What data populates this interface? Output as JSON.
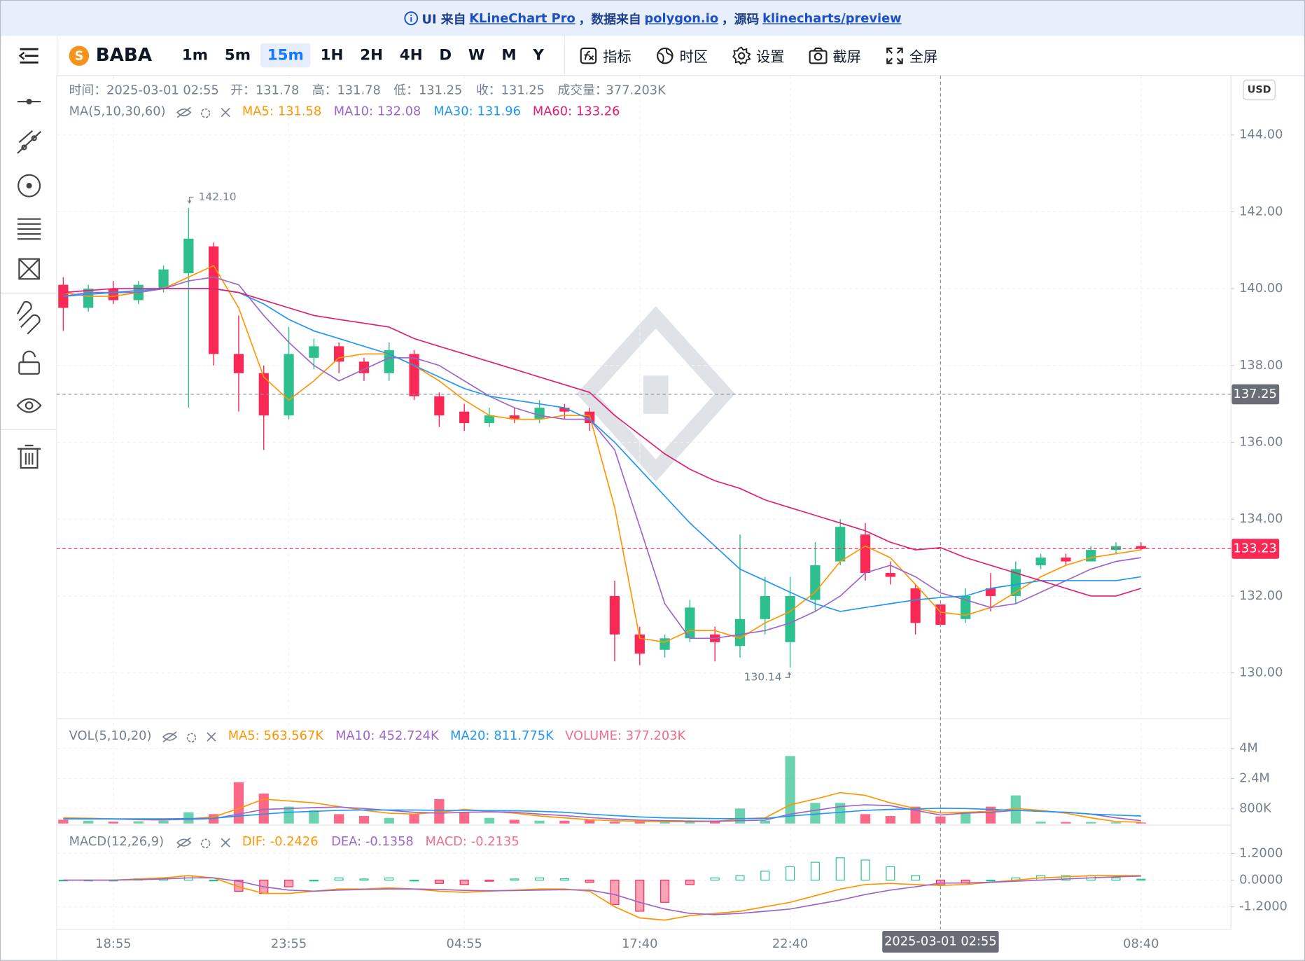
{
  "banner": {
    "prefix": "UI 来自",
    "link1": "KLineChart Pro",
    "mid1": "，数据来自",
    "link2": "polygon.io",
    "mid2": "，源码",
    "link3": "klinecharts/preview"
  },
  "toolbar": {
    "symbol": "BABA",
    "symbol_icon": "S",
    "periods": [
      "1m",
      "5m",
      "15m",
      "1H",
      "2H",
      "4H",
      "D",
      "W",
      "M",
      "Y"
    ],
    "active_period": "15m",
    "buttons": [
      "指标",
      "时区",
      "设置",
      "截屏",
      "全屏"
    ]
  },
  "chart_data": {
    "type": "candlestick",
    "currency": "USD",
    "up_color": "#2dc08e",
    "down_color": "#f92855",
    "categories": [
      null,
      null,
      "18:55",
      null,
      null,
      null,
      null,
      null,
      null,
      "23:55",
      null,
      null,
      null,
      null,
      null,
      null,
      "04:55",
      null,
      null,
      null,
      null,
      null,
      null,
      "17:40",
      null,
      null,
      null,
      null,
      null,
      "22:40",
      null,
      null,
      null,
      null,
      null,
      "2025-03-01 02:55",
      null,
      null,
      null,
      null,
      null,
      null,
      null,
      "08:40"
    ],
    "open": [
      140.1,
      139.5,
      140.0,
      139.7,
      140.0,
      140.4,
      141.1,
      138.3,
      137.8,
      136.7,
      138.2,
      138.5,
      138.1,
      137.8,
      138.3,
      137.2,
      136.8,
      136.5,
      136.7,
      136.6,
      136.9,
      136.8,
      132.0,
      131.0,
      130.6,
      130.9,
      131.0,
      130.7,
      131.4,
      130.8,
      131.9,
      132.9,
      133.6,
      132.6,
      132.2,
      131.78,
      131.4,
      132.2,
      132.0,
      132.8,
      133.0,
      132.9,
      133.2,
      133.3
    ],
    "high": [
      140.3,
      140.1,
      140.2,
      140.2,
      140.6,
      142.1,
      141.2,
      139.3,
      138.0,
      139.0,
      138.7,
      138.6,
      138.2,
      138.6,
      138.4,
      137.3,
      137.0,
      136.9,
      136.9,
      137.1,
      137.0,
      136.9,
      132.4,
      131.2,
      131.0,
      131.9,
      131.2,
      133.6,
      132.5,
      132.5,
      133.4,
      134.0,
      133.9,
      132.9,
      132.3,
      131.78,
      132.2,
      132.6,
      132.9,
      133.1,
      133.1,
      133.3,
      133.4,
      133.4
    ],
    "low": [
      138.9,
      139.4,
      139.6,
      139.6,
      139.9,
      136.9,
      138.0,
      136.8,
      135.8,
      136.6,
      137.9,
      137.8,
      137.6,
      137.6,
      137.1,
      136.4,
      136.3,
      136.4,
      136.5,
      136.5,
      136.6,
      136.3,
      130.3,
      130.2,
      130.4,
      130.8,
      130.3,
      130.4,
      131.0,
      130.14,
      131.6,
      132.8,
      132.4,
      132.3,
      131.0,
      131.25,
      131.3,
      131.6,
      131.8,
      132.7,
      132.8,
      132.9,
      133.1,
      133.2
    ],
    "close": [
      139.5,
      140.0,
      139.7,
      140.1,
      140.5,
      141.3,
      138.3,
      137.8,
      136.7,
      138.3,
      138.5,
      138.1,
      137.8,
      138.4,
      137.2,
      136.7,
      136.5,
      136.7,
      136.6,
      136.9,
      136.8,
      136.5,
      131.0,
      130.5,
      130.9,
      131.7,
      130.8,
      131.4,
      132.0,
      132.0,
      132.8,
      133.8,
      132.6,
      132.5,
      131.3,
      131.25,
      132.0,
      132.0,
      132.7,
      133.0,
      132.9,
      133.2,
      133.3,
      133.23
    ],
    "ylim": [
      128.81,
      145.54
    ],
    "yticks": [
      {
        "value": 130,
        "label": "130.00"
      },
      {
        "value": 132,
        "label": "132.00"
      },
      {
        "value": 134,
        "label": "134.00"
      },
      {
        "value": 136,
        "label": "136.00"
      },
      {
        "value": 138,
        "label": "138.00"
      },
      {
        "value": 140,
        "label": "140.00"
      },
      {
        "value": 142,
        "label": "142.00"
      },
      {
        "value": 144,
        "label": "144.00"
      }
    ],
    "grid": true,
    "tooltip_labels": [
      "时间：",
      "开：",
      "高：",
      "低：",
      "收：",
      "成交量："
    ],
    "indicator": "MA(5,10,30,60)",
    "series": [
      {
        "name": "MA5:",
        "color": "#ff9600",
        "values": [
          139.9,
          139.8,
          139.8,
          139.9,
          140.0,
          140.3,
          140.6,
          139.5,
          137.7,
          137.1,
          137.6,
          138.2,
          138.3,
          138.3,
          138.0,
          137.6,
          137.1,
          136.7,
          136.6,
          136.6,
          136.7,
          136.7,
          134.3,
          130.9,
          130.8,
          131.1,
          131.1,
          130.9,
          131.3,
          131.6,
          132.1,
          132.9,
          133.3,
          133.0,
          132.3,
          131.58,
          131.5,
          131.7,
          132.1,
          132.5,
          132.8,
          133.0,
          133.1,
          133.2
        ]
      },
      {
        "name": "MA10:",
        "color": "#9d65c9",
        "values": [
          139.8,
          139.9,
          139.9,
          139.9,
          140.0,
          140.2,
          140.3,
          140.1,
          139.3,
          138.6,
          138.0,
          137.6,
          137.9,
          138.2,
          138.2,
          138.0,
          137.6,
          137.2,
          136.9,
          136.7,
          136.6,
          136.6,
          135.8,
          133.8,
          131.8,
          130.9,
          130.9,
          131.0,
          131.1,
          131.3,
          131.6,
          132.0,
          132.6,
          132.8,
          132.5,
          132.08,
          131.9,
          131.7,
          131.8,
          132.1,
          132.4,
          132.7,
          132.9,
          133.0
        ]
      },
      {
        "name": "MA30:",
        "color": "#2196f3",
        "values": [
          139.8,
          139.85,
          139.9,
          139.95,
          140.0,
          140.0,
          140.0,
          139.9,
          139.6,
          139.2,
          138.9,
          138.7,
          138.5,
          138.3,
          138.0,
          137.7,
          137.4,
          137.2,
          137.1,
          137.0,
          136.9,
          136.6,
          136.0,
          135.3,
          134.6,
          133.9,
          133.3,
          132.7,
          132.4,
          132.1,
          131.8,
          131.6,
          131.7,
          131.8,
          131.9,
          131.96,
          132.0,
          132.2,
          132.3,
          132.4,
          132.4,
          132.4,
          132.4,
          132.5
        ]
      },
      {
        "name": "MA60:",
        "color": "#e11d74",
        "values": [
          139.9,
          139.95,
          140.0,
          140.0,
          140.0,
          140.0,
          140.0,
          139.9,
          139.7,
          139.5,
          139.3,
          139.2,
          139.1,
          139.0,
          138.7,
          138.5,
          138.3,
          138.1,
          137.9,
          137.7,
          137.5,
          137.3,
          136.7,
          136.2,
          135.7,
          135.3,
          135.0,
          134.8,
          134.5,
          134.3,
          134.1,
          133.9,
          133.7,
          133.4,
          133.2,
          133.26,
          133.0,
          132.8,
          132.6,
          132.4,
          132.2,
          132.0,
          132.0,
          132.2
        ]
      }
    ],
    "annotations": [
      {
        "value": 142.1,
        "label": "142.10"
      },
      {
        "value": 130.14,
        "label": "130.14"
      }
    ],
    "crosshair": {
      "value": 137.25
    },
    "volume": {
      "indicator": "VOL(5,10,20)",
      "values": [
        200000,
        150000,
        100000,
        120000,
        150000,
        600000,
        500000,
        2200000,
        1600000,
        900000,
        700000,
        500000,
        400000,
        300000,
        500000,
        1300000,
        600000,
        300000,
        200000,
        150000,
        150000,
        200000,
        100000,
        100000,
        80000,
        100000,
        150000,
        800000,
        150000,
        3600000,
        1100000,
        1100000,
        500000,
        400000,
        900000,
        377203,
        600000,
        900000,
        1500000,
        100000,
        80000,
        80000,
        60000,
        50000
      ],
      "current": {
        "name": "VOLUME:",
        "label": "377.203K",
        "color": "#ef6f8e"
      },
      "ylim": [
        0,
        5420000
      ],
      "yticks": [
        {
          "value": 800000,
          "label": "800K"
        },
        {
          "value": 2400000,
          "label": "2.4M"
        },
        {
          "value": 4000000,
          "label": "4M"
        }
      ],
      "series": [
        {
          "name": "MA5:",
          "color": "#ff9600",
          "current_label": "563.567K",
          "values": [
            300000,
            280000,
            250000,
            200000,
            180000,
            250000,
            350000,
            800000,
            1300000,
            1200000,
            1100000,
            900000,
            700000,
            550000,
            500000,
            600000,
            750000,
            650000,
            550000,
            400000,
            300000,
            200000,
            150000,
            120000,
            100000,
            100000,
            110000,
            250000,
            300000,
            1000000,
            1300000,
            1650000,
            1500000,
            1100000,
            800000,
            563567,
            600000,
            650000,
            800000,
            700000,
            550000,
            300000,
            100000,
            70000
          ]
        },
        {
          "name": "MA10:",
          "color": "#9d65c9",
          "current_label": "452.724K",
          "values": [
            250000,
            250000,
            240000,
            220000,
            200000,
            220000,
            260000,
            500000,
            750000,
            800000,
            850000,
            880000,
            800000,
            700000,
            600000,
            550000,
            600000,
            620000,
            600000,
            500000,
            420000,
            320000,
            240000,
            180000,
            150000,
            130000,
            120000,
            150000,
            180000,
            500000,
            700000,
            900000,
            1000000,
            950000,
            700000,
            452724,
            550000,
            600000,
            700000,
            650000,
            600000,
            500000,
            300000,
            150000
          ]
        },
        {
          "name": "MA20:",
          "color": "#2196f3",
          "current_label": "811.775K",
          "values": [
            250000,
            250000,
            250000,
            250000,
            250000,
            260000,
            280000,
            400000,
            500000,
            600000,
            650000,
            700000,
            720000,
            720000,
            720000,
            700000,
            700000,
            690000,
            680000,
            650000,
            600000,
            500000,
            420000,
            350000,
            300000,
            280000,
            260000,
            260000,
            270000,
            400000,
            500000,
            600000,
            700000,
            750000,
            780000,
            811775,
            800000,
            750000,
            700000,
            650000,
            600000,
            500000,
            450000,
            400000
          ]
        }
      ]
    },
    "macd": {
      "indicator": "MACD(12,26,9)",
      "ylim": [
        -2.21,
        2.17
      ],
      "yticks": [
        {
          "value": -1.2,
          "label": "-1.2000"
        },
        {
          "value": 0,
          "label": "0.0000"
        },
        {
          "value": 1.2,
          "label": "1.2000"
        }
      ],
      "series": [
        {
          "name": "DIF:",
          "color": "#ff9600",
          "values": [
            0,
            0,
            0,
            0.05,
            0.1,
            0.2,
            0.1,
            -0.3,
            -0.6,
            -0.6,
            -0.5,
            -0.4,
            -0.4,
            -0.35,
            -0.4,
            -0.5,
            -0.55,
            -0.5,
            -0.45,
            -0.4,
            -0.4,
            -0.5,
            -1.2,
            -1.7,
            -1.8,
            -1.6,
            -1.5,
            -1.4,
            -1.2,
            -1.0,
            -0.7,
            -0.4,
            -0.2,
            -0.15,
            -0.2,
            -0.2426,
            -0.2,
            -0.1,
            0,
            0.1,
            0.15,
            0.2,
            0.2,
            0.2
          ]
        },
        {
          "name": "DEA:",
          "color": "#9d65c9",
          "values": [
            0,
            0,
            0,
            0.02,
            0.05,
            0.1,
            0.1,
            -0.05,
            -0.3,
            -0.45,
            -0.5,
            -0.45,
            -0.42,
            -0.4,
            -0.4,
            -0.42,
            -0.46,
            -0.48,
            -0.47,
            -0.45,
            -0.43,
            -0.45,
            -0.65,
            -1.0,
            -1.3,
            -1.5,
            -1.55,
            -1.5,
            -1.4,
            -1.3,
            -1.1,
            -0.9,
            -0.65,
            -0.45,
            -0.3,
            -0.1358,
            -0.13,
            -0.1,
            -0.05,
            0,
            0.05,
            0.1,
            0.15,
            0.18
          ]
        }
      ],
      "histogram": {
        "name": "MACD:",
        "color": "#ef6f8e",
        "values": [
          0,
          0,
          0,
          0.06,
          0.1,
          0.2,
          0,
          -0.5,
          -0.6,
          -0.3,
          0,
          0.1,
          0.05,
          0.1,
          0,
          -0.15,
          -0.2,
          -0.05,
          0.05,
          0.1,
          0.06,
          -0.1,
          -1.1,
          -1.4,
          -1.0,
          -0.2,
          0.1,
          0.2,
          0.4,
          0.6,
          0.8,
          1.0,
          0.9,
          0.6,
          0.2,
          -0.2135,
          -0.14,
          0,
          0.1,
          0.2,
          0.2,
          0.2,
          0.1,
          0.04
        ]
      }
    }
  }
}
